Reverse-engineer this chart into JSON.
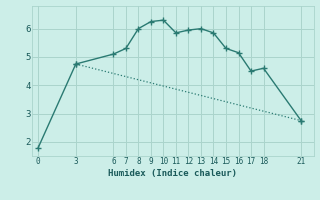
{
  "xlabel": "Humidex (Indice chaleur)",
  "bg_color": "#cceee8",
  "grid_color": "#aad4cc",
  "line_color": "#2a7a72",
  "line1_x": [
    0,
    3,
    6,
    7,
    8,
    9,
    10,
    11,
    12,
    13,
    14,
    15,
    16,
    17,
    18,
    21
  ],
  "line1_y": [
    1.8,
    4.75,
    5.1,
    5.3,
    6.0,
    6.25,
    6.3,
    5.85,
    5.95,
    6.0,
    5.85,
    5.3,
    5.15,
    4.5,
    4.6,
    2.75
  ],
  "line2_x": [
    3,
    21
  ],
  "line2_y": [
    4.75,
    2.75
  ],
  "xticks": [
    0,
    3,
    6,
    7,
    8,
    9,
    10,
    11,
    12,
    13,
    14,
    15,
    16,
    17,
    18,
    21
  ],
  "yticks": [
    2,
    3,
    4,
    5,
    6
  ],
  "xlim": [
    -0.5,
    22
  ],
  "ylim": [
    1.5,
    6.8
  ]
}
